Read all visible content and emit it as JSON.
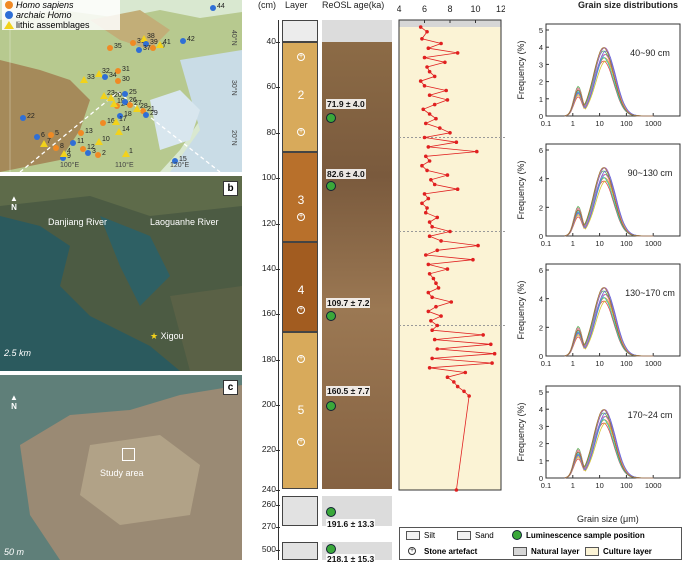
{
  "panel_a": {
    "label": "",
    "legend": [
      "Homo sapiens",
      "archaic Homo",
      "lithic assemblages"
    ],
    "lon_labels": [
      "100°E",
      "110°E",
      "120°E"
    ],
    "lat_labels": [
      "40°N",
      "30°N",
      "20°N"
    ],
    "site_numbers": [
      "44",
      "36",
      "38",
      "39",
      "40",
      "41",
      "42",
      "35",
      "32",
      "34",
      "31",
      "33",
      "37",
      "30",
      "23",
      "22",
      "21",
      "20",
      "25",
      "24",
      "19",
      "18",
      "16",
      "17",
      "26",
      "27",
      "28",
      "29",
      "13",
      "14",
      "11",
      "12",
      "10",
      "9",
      "8",
      "7",
      "6",
      "5",
      "4",
      "3",
      "2",
      "1",
      "15"
    ],
    "colors": {
      "sapiens": "#f08a24",
      "archaic": "#2f6fd6",
      "lithic": "#f2d21b"
    }
  },
  "panel_b": {
    "label": "b",
    "north": "N",
    "rivers": [
      "Danjiang River",
      "Laoguanhe River"
    ],
    "site": "Xigou",
    "scale": "2.5 km"
  },
  "panel_c": {
    "label": "c",
    "north": "N",
    "area": "Study area",
    "scale": "50 m"
  },
  "column": {
    "depth_unit": "(cm)",
    "layer_head": "Layer",
    "age_head": "ReOSL age(ka)",
    "depth_ticks": [
      "40",
      "60",
      "80",
      "100",
      "120",
      "140",
      "160",
      "180",
      "200",
      "220",
      "240",
      "260",
      "270",
      "500"
    ],
    "layers": [
      "2",
      "3",
      "4",
      "5"
    ],
    "ages": [
      "71.9 ± 4.0",
      "82.6 ± 4.0",
      "109.7 ± 7.2",
      "160.5 ± 7.7",
      "191.6 ± 13.3",
      "218.1 ± 15.3"
    ]
  },
  "mgs": {
    "ticks": [
      "4",
      "6",
      "8",
      "10",
      "12"
    ],
    "head": "Grain size distributions"
  },
  "grain_size": {
    "panels": [
      {
        "range": "40~90 cm"
      },
      {
        "range": "90~130 cm"
      },
      {
        "range": "130~170 cm"
      },
      {
        "range": "170~24 cm"
      }
    ],
    "ylabel": "Frequency (%)",
    "xlabel": "Grain size (μm)",
    "xticks": [
      "0.1",
      "1",
      "10",
      "100",
      "1000"
    ],
    "yticks_a": [
      "0",
      "1",
      "2",
      "3",
      "4",
      "5"
    ],
    "yticks_b": [
      "0",
      "2",
      "4",
      "6"
    ],
    "yticks_c": [
      "0",
      "2",
      "4",
      "6"
    ],
    "yticks_d": [
      "0",
      "1",
      "2",
      "3",
      "4",
      "5"
    ]
  },
  "legend": {
    "silt": "Silt",
    "sand": "Sand",
    "lum": "Luminescence sample position",
    "stone": "Stone artefact",
    "natural": "Natural layer",
    "culture": "Culture layer"
  },
  "chart_data": {
    "type": "line",
    "title": "",
    "xlabel": "",
    "ylabel": "(cm)",
    "xlim": [
      4,
      12
    ],
    "ylim": [
      240,
      40
    ],
    "x": [
      5.7,
      6.2,
      5.8,
      7.3,
      6.3,
      8.6,
      6.0,
      7.6,
      6.2,
      6.4,
      6.8,
      5.7,
      6.0,
      7.7,
      6.4,
      7.8,
      6.8,
      5.9,
      6.4,
      6.9,
      6.1,
      7.2,
      8.0,
      6.0,
      8.5,
      6.3,
      10.1,
      6.1,
      6.4,
      5.8,
      6.2,
      7.8,
      6.5,
      6.8,
      8.6,
      6.0,
      6.3,
      5.8,
      6.2,
      6.1,
      7.0,
      6.4,
      6.6,
      8.0,
      6.4,
      7.3,
      10.2,
      7.0,
      6.1,
      9.8,
      6.3,
      7.8,
      6.4,
      6.7,
      6.9,
      7.1,
      6.3,
      6.6,
      8.1,
      6.9,
      6.3,
      7.3,
      6.5,
      7.0,
      6.6,
      10.6,
      6.8,
      11.2,
      7.0,
      11.5,
      6.6,
      11.3,
      6.4,
      9.2,
      7.8,
      8.3,
      8.6,
      9.1,
      9.5,
      8.5
    ],
    "y": [
      43,
      45,
      48,
      50,
      52,
      54,
      56,
      58,
      60,
      62,
      64,
      66,
      68,
      70,
      72,
      74,
      76,
      78,
      80,
      82,
      84,
      86,
      88,
      90,
      92,
      94,
      96,
      98,
      100,
      102,
      104,
      106,
      108,
      110,
      112,
      114,
      116,
      118,
      120,
      122,
      124,
      126,
      128,
      130,
      132,
      134,
      136,
      138,
      140,
      142,
      144,
      146,
      148,
      150,
      152,
      154,
      156,
      158,
      160,
      162,
      164,
      166,
      168,
      170,
      172,
      174,
      176,
      178,
      180,
      182,
      184,
      186,
      188,
      190,
      192,
      194,
      196,
      198,
      200,
      240
    ]
  }
}
